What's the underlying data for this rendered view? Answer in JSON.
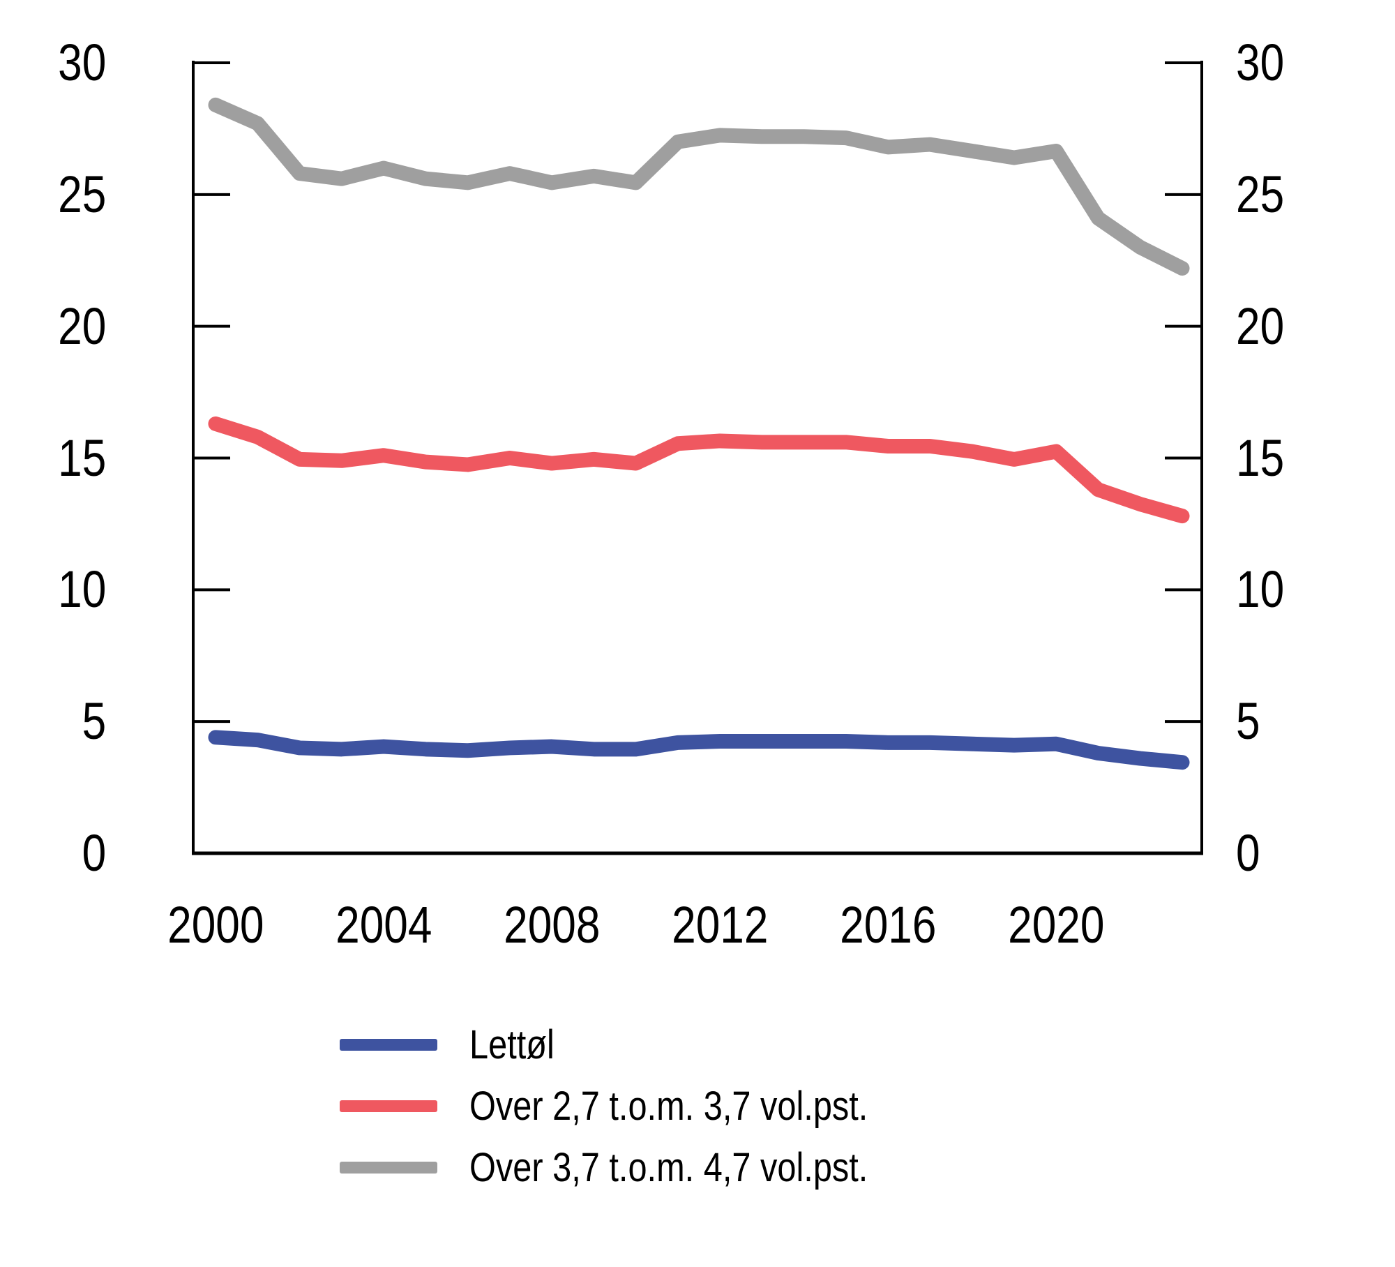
{
  "chart_data": {
    "type": "line",
    "title": "",
    "xlabel": "",
    "ylabel": "",
    "x": [
      2000,
      2001,
      2002,
      2003,
      2004,
      2005,
      2006,
      2007,
      2008,
      2009,
      2010,
      2011,
      2012,
      2013,
      2014,
      2015,
      2016,
      2017,
      2018,
      2019,
      2020,
      2021,
      2022,
      2023
    ],
    "series": [
      {
        "name": "Lettøl",
        "color": "#3E53A0",
        "values": [
          4.4,
          4.3,
          4.0,
          3.95,
          4.05,
          3.95,
          3.9,
          4.0,
          4.05,
          3.95,
          3.95,
          4.2,
          4.25,
          4.25,
          4.25,
          4.25,
          4.2,
          4.2,
          4.15,
          4.1,
          4.15,
          3.8,
          3.6,
          3.45
        ]
      },
      {
        "name": "Over 2,7 t.o.m. 3,7 vol.pst.",
        "color": "#EF5860",
        "values": [
          16.3,
          15.8,
          14.95,
          14.9,
          15.1,
          14.85,
          14.75,
          15.0,
          14.8,
          14.95,
          14.8,
          15.55,
          15.65,
          15.6,
          15.6,
          15.6,
          15.45,
          15.45,
          15.25,
          14.95,
          15.25,
          13.8,
          13.25,
          12.8
        ]
      },
      {
        "name": "Over 3,7 t.o.m. 4,7 vol.pst.",
        "color": "#9F9F9F",
        "values": [
          28.4,
          27.7,
          25.8,
          25.6,
          26.0,
          25.6,
          25.45,
          25.8,
          25.45,
          25.7,
          25.45,
          27.0,
          27.25,
          27.2,
          27.2,
          27.15,
          26.8,
          26.9,
          26.65,
          26.4,
          26.65,
          24.1,
          23.0,
          22.2
        ]
      }
    ],
    "ylim": [
      0,
      30
    ],
    "y_ticks": [
      0,
      5,
      10,
      15,
      20,
      25,
      30
    ],
    "y_tick_labels": [
      "0",
      "5",
      "10",
      "15",
      "20",
      "25",
      "30"
    ],
    "x_tick_years": [
      2000,
      2004,
      2008,
      2012,
      2016,
      2020
    ],
    "x_tick_labels": [
      "2000",
      "2004",
      "2008",
      "2012",
      "2016",
      "2020"
    ],
    "dual_y_axis": true,
    "grid": false,
    "legend_position": "bottom",
    "axis_color": "#000000",
    "background_color": "#ffffff"
  }
}
